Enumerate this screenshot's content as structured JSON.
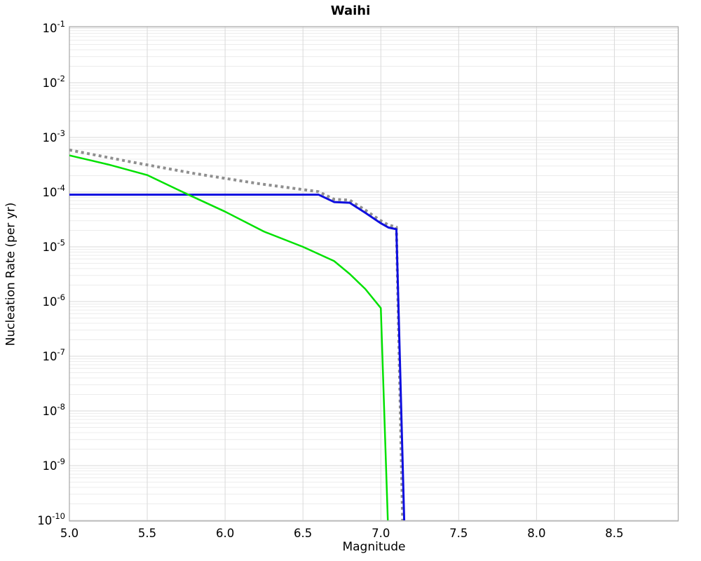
{
  "figure": {
    "background": "#ffffff"
  },
  "chart_data": {
    "type": "line",
    "title": "Waihi",
    "xlabel": "Magnitude",
    "ylabel": "Nucleation Rate (per yr)",
    "legend": null,
    "x_axis": {
      "min": 5.0,
      "max": 8.91,
      "ticks": [
        5.0,
        5.5,
        6.0,
        6.5,
        7.0,
        7.5,
        8.0,
        8.5
      ],
      "tick_labels": [
        "5.0",
        "5.5",
        "6.0",
        "6.5",
        "7.0",
        "7.5",
        "8.0",
        "8.5"
      ]
    },
    "y_axis": {
      "scale": "log",
      "min_exp": -10,
      "max_exp": -1,
      "tick_base": "10",
      "tick_exponents": [
        -1,
        -2,
        -3,
        -4,
        -5,
        -6,
        -7,
        -8,
        -9,
        -10
      ]
    },
    "grid": {
      "vertical_major": true,
      "horizontal_major": true,
      "horizontal_log_minor": true,
      "major_color": "#d9d9d9",
      "minor_color": "#ececec",
      "border_color": "#a8a8a8"
    },
    "series": [
      {
        "name": "gray-dotted-line",
        "color": "#8f8f8f",
        "style": "dotted",
        "width": 4,
        "points": [
          [
            5.0,
            0.00059
          ],
          [
            5.4,
            0.000355
          ],
          [
            5.8,
            0.00022
          ],
          [
            6.2,
            0.000145
          ],
          [
            6.6,
            0.000102
          ],
          [
            6.7,
            7.4e-05
          ],
          [
            6.8,
            7.15e-05
          ],
          [
            6.9,
            4.7e-05
          ],
          [
            7.0,
            3e-05
          ],
          [
            7.05,
            2.5e-05
          ],
          [
            7.1,
            2.3e-05
          ],
          [
            7.14,
            1e-10
          ]
        ]
      },
      {
        "name": "blue-solid-line",
        "color": "#0e0edf",
        "style": "solid",
        "width": 3,
        "points": [
          [
            5.0,
            9e-05
          ],
          [
            6.6,
            9e-05
          ],
          [
            6.7,
            6.6e-05
          ],
          [
            6.8,
            6.4e-05
          ],
          [
            6.9,
            4.2e-05
          ],
          [
            7.0,
            2.7e-05
          ],
          [
            7.05,
            2.25e-05
          ],
          [
            7.1,
            2.1e-05
          ],
          [
            7.15,
            1e-10
          ]
        ]
      },
      {
        "name": "green-solid-line",
        "color": "#00e100",
        "style": "solid",
        "width": 2.5,
        "points": [
          [
            5.0,
            0.00047
          ],
          [
            5.25,
            0.00032
          ],
          [
            5.5,
            0.000205
          ],
          [
            5.76,
            9.1e-05
          ],
          [
            6.0,
            4.4e-05
          ],
          [
            6.25,
            1.9e-05
          ],
          [
            6.5,
            1e-05
          ],
          [
            6.7,
            5.5e-06
          ],
          [
            6.8,
            3.2e-06
          ],
          [
            6.9,
            1.7e-06
          ],
          [
            7.0,
            7.6e-07
          ],
          [
            7.045,
            1e-10
          ]
        ]
      }
    ]
  }
}
